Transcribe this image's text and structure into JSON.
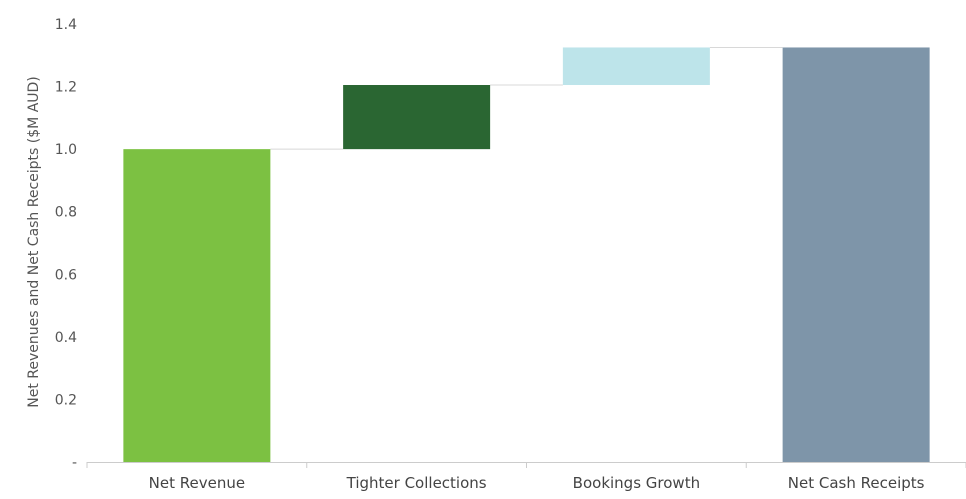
{
  "chart_data": {
    "type": "bar",
    "subtype": "waterfall",
    "title": "",
    "xlabel": "",
    "ylabel": "Net Revenues and Net Cash Receipts ($M AUD)",
    "ylim": [
      0,
      1.4
    ],
    "yticks": [
      {
        "value": 0,
        "label": "-"
      },
      {
        "value": 0.2,
        "label": "0.2"
      },
      {
        "value": 0.4,
        "label": "0.4"
      },
      {
        "value": 0.6,
        "label": "0.6"
      },
      {
        "value": 0.8,
        "label": "0.8"
      },
      {
        "value": 1.0,
        "label": "1.0"
      },
      {
        "value": 1.2,
        "label": "1.2"
      },
      {
        "value": 1.4,
        "label": "1.4"
      }
    ],
    "grid": false,
    "categories": [
      "Net Revenue",
      "Tighter Collections",
      "Bookings Growth",
      "Net Cash Receipts"
    ],
    "bars": [
      {
        "category": "Net Revenue",
        "start": 0,
        "end": 1.0,
        "kind": "total",
        "color": "#7cc142"
      },
      {
        "category": "Tighter Collections",
        "start": 1.0,
        "end": 1.205,
        "kind": "increase",
        "color": "#2a6632"
      },
      {
        "category": "Bookings Growth",
        "start": 1.205,
        "end": 1.325,
        "kind": "increase",
        "color": "#bde4ea"
      },
      {
        "category": "Net Cash Receipts",
        "start": 0,
        "end": 1.325,
        "kind": "total",
        "color": "#7e95a9"
      }
    ],
    "connector_color": "#d8d8d8",
    "axis_color": "#cccccc"
  }
}
